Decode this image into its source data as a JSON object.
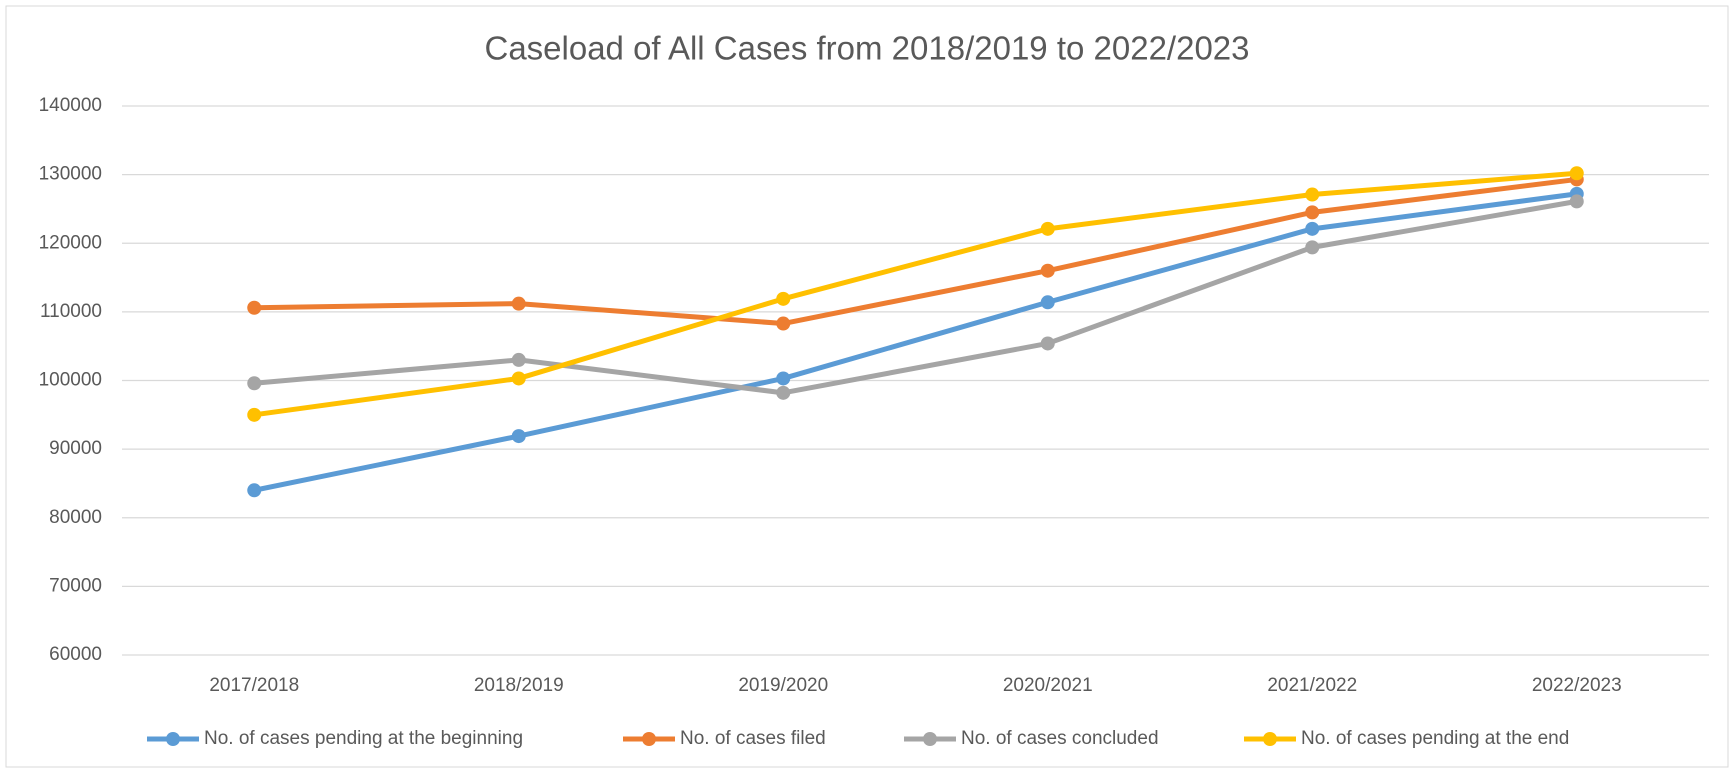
{
  "chart_data": {
    "type": "line",
    "title": "Caseload of All Cases from 2018/2019 to 2022/2023",
    "categories": [
      "2017/2018",
      "2018/2019",
      "2019/2020",
      "2020/2021",
      "2021/2022",
      "2022/2023"
    ],
    "series": [
      {
        "name": "No. of cases pending at the beginning",
        "color": "#5b9bd5",
        "values": [
          84000,
          91900,
          100300,
          111400,
          122100,
          127200
        ]
      },
      {
        "name": "No. of cases filed",
        "color": "#ed7d31",
        "values": [
          110600,
          111200,
          108300,
          116000,
          124500,
          129300
        ]
      },
      {
        "name": "No. of cases concluded",
        "color": "#a5a5a5",
        "values": [
          99600,
          103000,
          98200,
          105400,
          119400,
          126100
        ]
      },
      {
        "name": "No. of cases pending at the end",
        "color": "#ffc000",
        "values": [
          95000,
          100300,
          111900,
          122100,
          127100,
          130200
        ]
      }
    ],
    "ylim": [
      60000,
      140000
    ],
    "yticks": [
      60000,
      70000,
      80000,
      90000,
      100000,
      110000,
      120000,
      130000,
      140000
    ],
    "grid": true,
    "legend": "bottom"
  }
}
